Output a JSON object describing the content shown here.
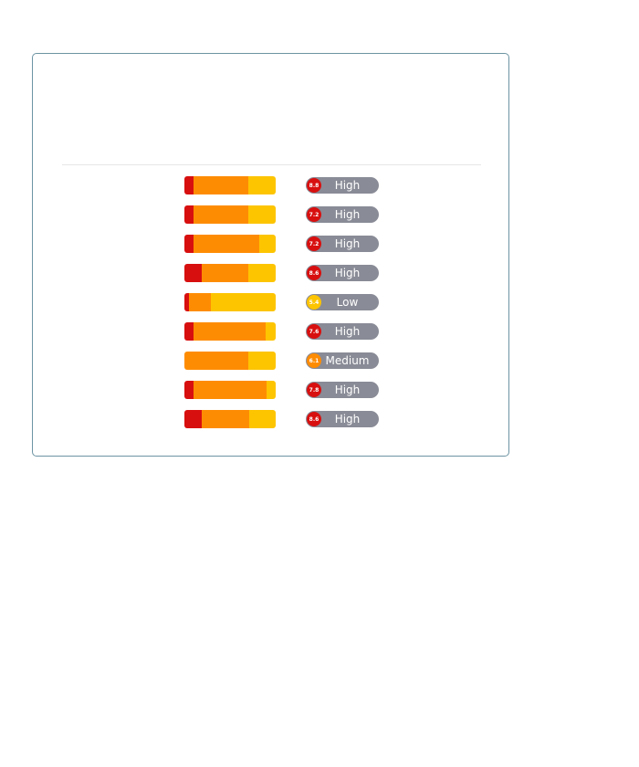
{
  "colors": {
    "critical": "#d80f0f",
    "high_segment": "#fe8c03",
    "low_segment": "#fdc400",
    "pill_background": "#898b96",
    "card_border": "#6d94a3"
  },
  "risk_rows": [
    {
      "score": "8.8",
      "level": "High",
      "score_color": "#d80f0f",
      "distribution": [
        0.1,
        0.6,
        0.3
      ]
    },
    {
      "score": "7.2",
      "level": "High",
      "score_color": "#d80f0f",
      "distribution": [
        0.1,
        0.6,
        0.3
      ]
    },
    {
      "score": "7.2",
      "level": "High",
      "score_color": "#d80f0f",
      "distribution": [
        0.1,
        0.72,
        0.18
      ]
    },
    {
      "score": "8.6",
      "level": "High",
      "score_color": "#d80f0f",
      "distribution": [
        0.19,
        0.51,
        0.3
      ]
    },
    {
      "score": "5.4",
      "level": "Low",
      "score_color": "#fdc400",
      "distribution": [
        0.05,
        0.24,
        0.71
      ]
    },
    {
      "score": "7.6",
      "level": "High",
      "score_color": "#d80f0f",
      "distribution": [
        0.1,
        0.79,
        0.11
      ]
    },
    {
      "score": "6.1",
      "level": "Medium",
      "score_color": "#fe8c03",
      "distribution": [
        0.0,
        0.7,
        0.3
      ]
    },
    {
      "score": "7.8",
      "level": "High",
      "score_color": "#d80f0f",
      "distribution": [
        0.1,
        0.8,
        0.1
      ]
    },
    {
      "score": "8.6",
      "level": "High",
      "score_color": "#d80f0f",
      "distribution": [
        0.19,
        0.52,
        0.29
      ]
    }
  ]
}
